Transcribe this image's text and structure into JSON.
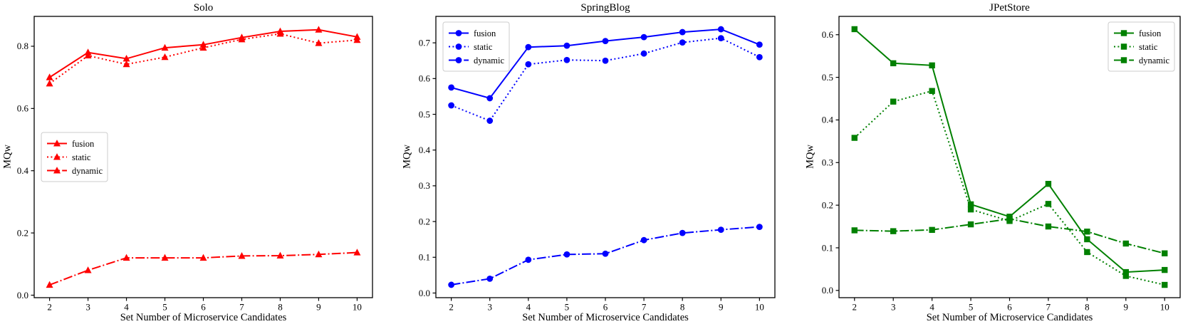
{
  "figure": {
    "background": "#ffffff",
    "frame_color": "#000000",
    "text_color": "#000000"
  },
  "chart_data": [
    {
      "type": "line",
      "title": "Solo",
      "xlabel": "Set Number of Microservice Candidates",
      "ylabel": "MQw",
      "color": "#ff0000",
      "marker": "triangle",
      "legend_position": "center-left",
      "grid": false,
      "x": [
        2,
        3,
        4,
        5,
        6,
        7,
        8,
        9,
        10
      ],
      "xticks": [
        2,
        3,
        4,
        5,
        6,
        7,
        8,
        9,
        10
      ],
      "xlim": [
        1.6,
        10.4
      ],
      "ylim": [
        -0.008,
        0.896
      ],
      "yticks": [
        0.0,
        0.2,
        0.4,
        0.6,
        0.8
      ],
      "series": [
        {
          "name": "fusion",
          "line_style": "solid",
          "values": [
            0.7,
            0.78,
            0.76,
            0.795,
            0.805,
            0.828,
            0.848,
            0.853,
            0.83
          ]
        },
        {
          "name": "static",
          "line_style": "dotted",
          "values": [
            0.68,
            0.77,
            0.742,
            0.765,
            0.795,
            0.822,
            0.84,
            0.81,
            0.82
          ]
        },
        {
          "name": "dynamic",
          "line_style": "dashdot",
          "values": [
            0.033,
            0.08,
            0.12,
            0.12,
            0.12,
            0.126,
            0.127,
            0.131,
            0.137
          ]
        }
      ]
    },
    {
      "type": "line",
      "title": "SpringBlog",
      "xlabel": "Set Number of Microservice Candidates",
      "ylabel": "MQw",
      "color": "#0000ff",
      "marker": "circle",
      "legend_position": "upper-left",
      "grid": false,
      "x": [
        2,
        3,
        4,
        5,
        6,
        7,
        8,
        9,
        10
      ],
      "xticks": [
        2,
        3,
        4,
        5,
        6,
        7,
        8,
        9,
        10
      ],
      "xlim": [
        1.6,
        10.4
      ],
      "ylim": [
        -0.013,
        0.774
      ],
      "yticks": [
        0.0,
        0.1,
        0.2,
        0.3,
        0.4,
        0.5,
        0.6,
        0.7
      ],
      "series": [
        {
          "name": "fusion",
          "line_style": "solid",
          "values": [
            0.575,
            0.545,
            0.688,
            0.692,
            0.705,
            0.716,
            0.73,
            0.738,
            0.695
          ]
        },
        {
          "name": "static",
          "line_style": "dotted",
          "values": [
            0.525,
            0.482,
            0.64,
            0.652,
            0.65,
            0.67,
            0.701,
            0.713,
            0.66
          ]
        },
        {
          "name": "dynamic",
          "line_style": "dashdot",
          "values": [
            0.023,
            0.04,
            0.093,
            0.108,
            0.11,
            0.148,
            0.168,
            0.177,
            0.185
          ]
        }
      ]
    },
    {
      "type": "line",
      "title": "JPetStore",
      "xlabel": "Set Number of Microservice Candidates",
      "ylabel": "MQw",
      "color": "#008000",
      "marker": "square",
      "legend_position": "upper-right",
      "grid": false,
      "x": [
        2,
        3,
        4,
        5,
        6,
        7,
        8,
        9,
        10
      ],
      "xticks": [
        2,
        3,
        4,
        5,
        6,
        7,
        8,
        9,
        10
      ],
      "xlim": [
        1.6,
        10.4
      ],
      "ylim": [
        -0.017,
        0.643
      ],
      "yticks": [
        0.0,
        0.1,
        0.2,
        0.3,
        0.4,
        0.5,
        0.6
      ],
      "series": [
        {
          "name": "fusion",
          "line_style": "solid",
          "values": [
            0.613,
            0.533,
            0.528,
            0.202,
            0.173,
            0.25,
            0.12,
            0.043,
            0.048
          ]
        },
        {
          "name": "static",
          "line_style": "dotted",
          "values": [
            0.358,
            0.443,
            0.468,
            0.19,
            0.163,
            0.203,
            0.09,
            0.034,
            0.013
          ]
        },
        {
          "name": "dynamic",
          "line_style": "dashdot",
          "values": [
            0.141,
            0.139,
            0.142,
            0.155,
            0.168,
            0.15,
            0.138,
            0.11,
            0.087
          ]
        }
      ]
    }
  ]
}
